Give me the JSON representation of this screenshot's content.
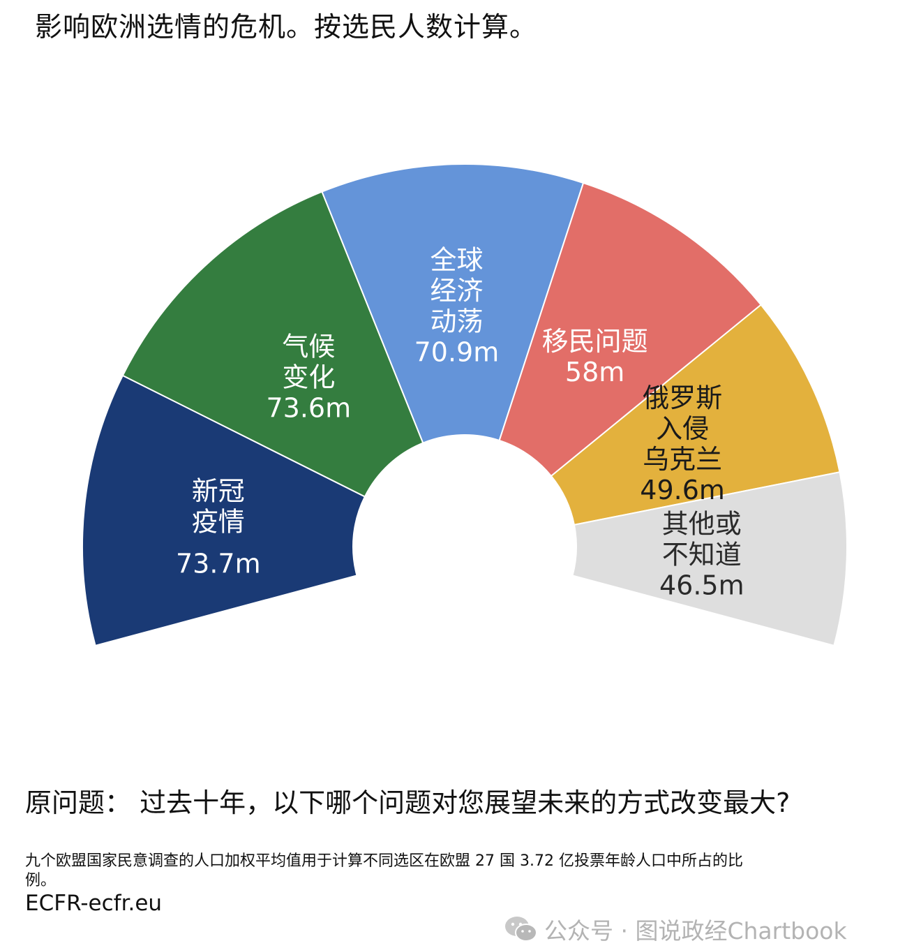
{
  "header": {
    "title": "影响欧洲选情的危机。按选民人数计算。"
  },
  "chart_data": {
    "type": "pie",
    "variant": "half-donut",
    "title": "影响欧洲选情的危机。按选民人数计算。",
    "slices": [
      {
        "label": "新冠疫情",
        "value": 73.7,
        "value_label": "73.7m",
        "color": "#1a3a75",
        "text_color": "#ffffff"
      },
      {
        "label": "气候变化",
        "value": 73.6,
        "value_label": "73.6m",
        "color": "#347d3f",
        "text_color": "#ffffff"
      },
      {
        "label": "全球经济动荡",
        "value": 70.9,
        "value_label": "70.9m",
        "color": "#6494d9",
        "text_color": "#ffffff"
      },
      {
        "label": "移民问题",
        "value": 58,
        "value_label": "58m",
        "color": "#e26e68",
        "text_color": "#ffffff"
      },
      {
        "label": "俄罗斯入侵乌克兰",
        "value": 49.6,
        "value_label": "49.6m",
        "color": "#e3b13d",
        "text_color": "#1a1a1a"
      },
      {
        "label": "其他或不知道",
        "value": 46.5,
        "value_label": "46.5m",
        "color": "#dedede",
        "text_color": "#2a2a2a"
      }
    ]
  },
  "footer": {
    "question": "原问题：  过去十年，以下哪个问题对您展望未来的方式改变最大?",
    "note": "九个欧盟国家民意调查的人口加权平均值用于计算不同选区在欧盟 27 国 3.72 亿投票年龄人口中所占的比例。",
    "source": "ECFR-ecfr.eu"
  },
  "watermark": {
    "text": "公众号 · 图说政经Chartbook",
    "icon": "wechat-icon"
  }
}
